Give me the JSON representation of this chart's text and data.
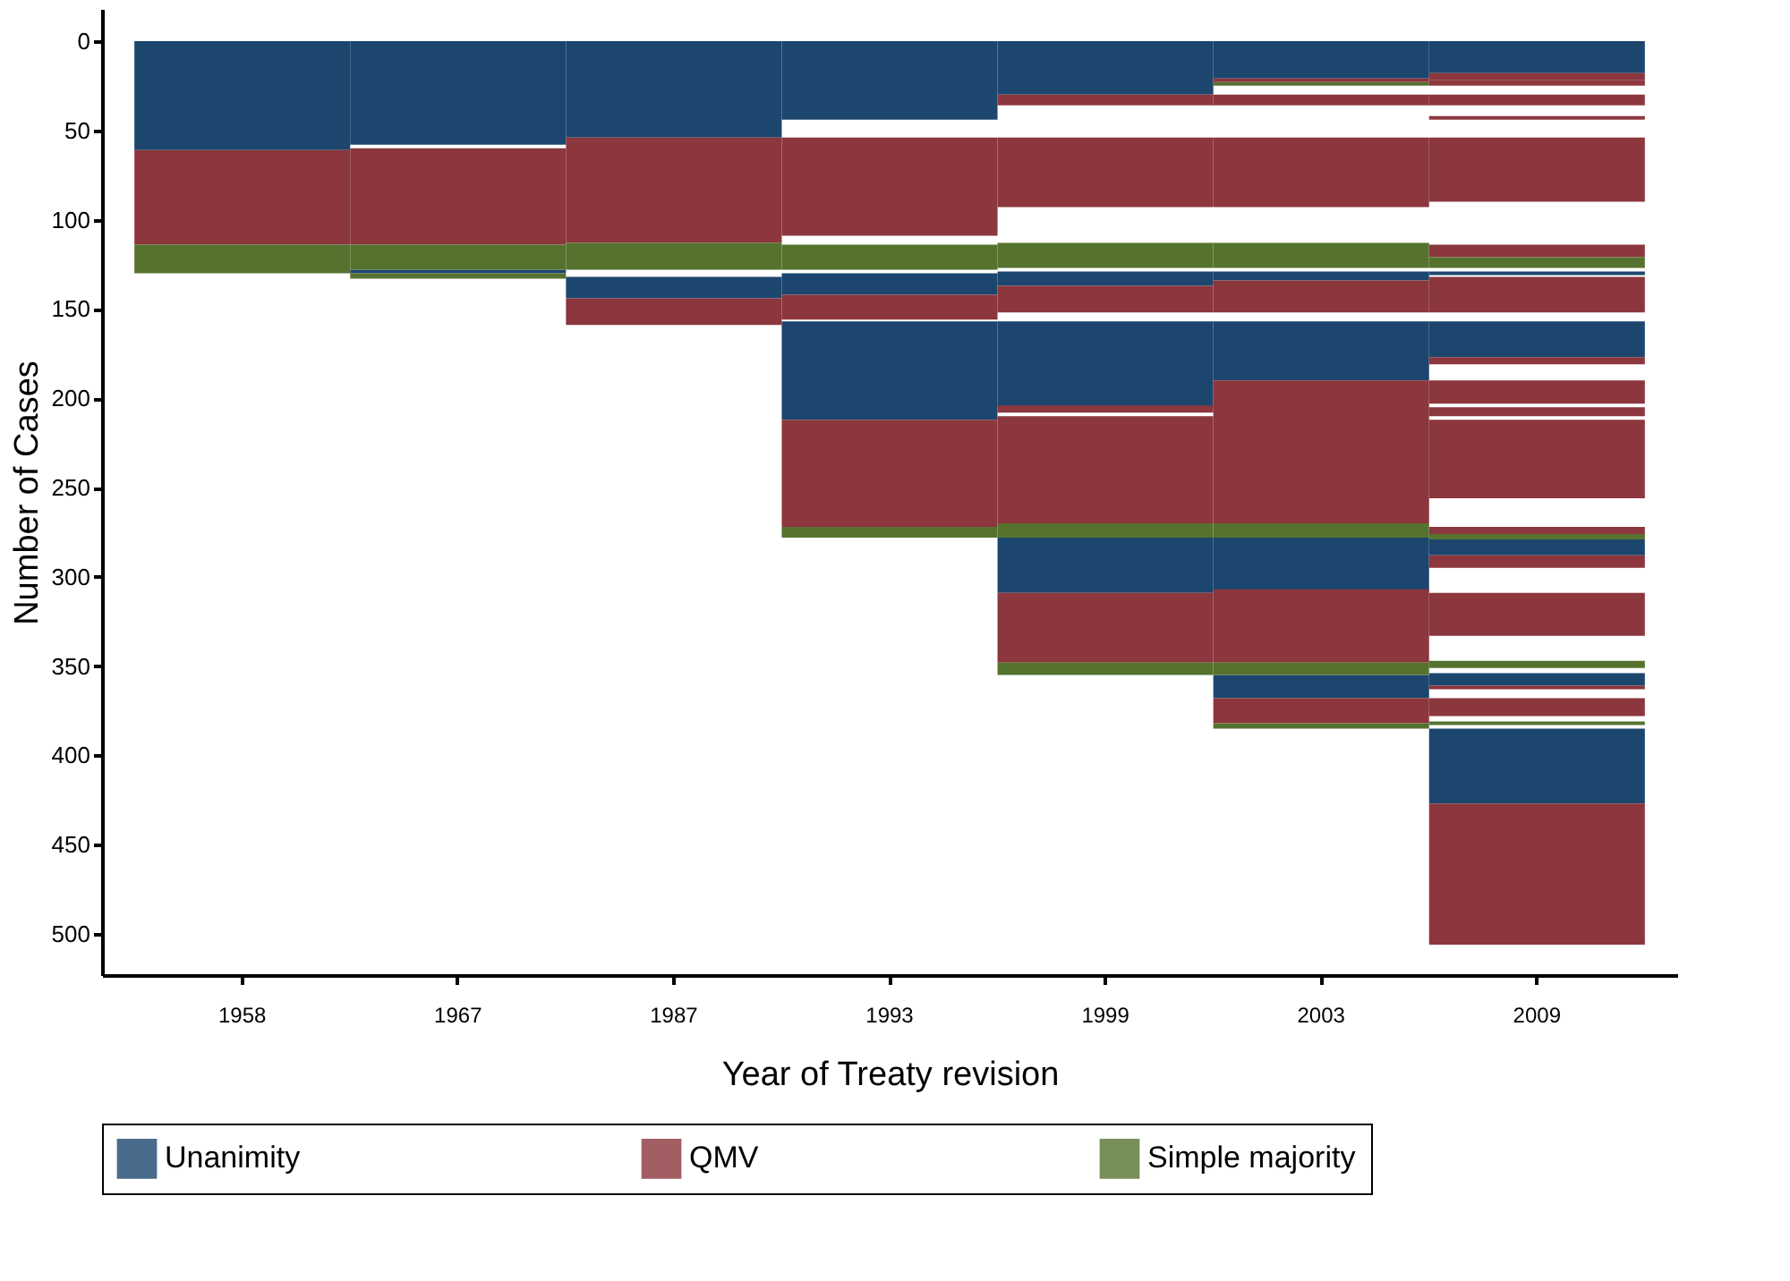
{
  "chart_data": {
    "type": "bar",
    "xlabel": "Year of Treaty revision",
    "ylabel": "Number of Cases",
    "categories": [
      "1958",
      "1967",
      "1987",
      "1993",
      "1999",
      "2003",
      "2009"
    ],
    "ylim": [
      523,
      -18
    ],
    "yticks": [
      0,
      50,
      100,
      150,
      200,
      250,
      300,
      350,
      400,
      450,
      500
    ],
    "grid": false,
    "legend": "bottom",
    "series": [
      {
        "name": "Unanimity",
        "color": "#1c466e",
        "base": [
          0,
          0,
          0,
          0,
          0,
          0,
          0
        ],
        "values": [
          61,
          58,
          54,
          44,
          30,
          21,
          18
        ]
      },
      {
        "color": "#1c466e",
        "base": [
          null,
          128,
          132,
          130,
          129,
          129,
          129
        ],
        "values": [
          null,
          2,
          12,
          12,
          8,
          5,
          2
        ]
      },
      {
        "color": "#1c466e",
        "base": [
          null,
          null,
          null,
          157,
          157,
          157,
          157
        ],
        "values": [
          null,
          null,
          null,
          55,
          48,
          33,
          20
        ]
      },
      {
        "color": "#1c466e",
        "base": [
          null,
          null,
          null,
          null,
          278,
          278,
          279
        ],
        "values": [
          null,
          null,
          null,
          null,
          31,
          30,
          9
        ]
      },
      {
        "color": "#1c466e",
        "base": [
          null,
          null,
          null,
          null,
          null,
          355,
          354
        ],
        "values": [
          null,
          null,
          null,
          null,
          null,
          13,
          7
        ]
      },
      {
        "color": "#1c466e",
        "base": [
          null,
          null,
          null,
          null,
          null,
          null,
          385
        ],
        "values": [
          null,
          null,
          null,
          null,
          null,
          null,
          42
        ]
      },
      {
        "name": "QMV",
        "color": "#8c363d",
        "base": [
          61,
          60,
          54,
          54,
          30,
          21,
          18
        ],
        "values": [
          53,
          54,
          59,
          55,
          6,
          2,
          4
        ]
      },
      {
        "color": "#8c363d",
        "base": [
          null,
          null,
          144,
          142,
          54,
          30,
          22
        ],
        "values": [
          null,
          null,
          15,
          14,
          39,
          6,
          3
        ]
      },
      {
        "color": "#8c363d",
        "base": [
          null,
          null,
          null,
          212,
          137,
          54,
          30
        ],
        "values": [
          null,
          null,
          null,
          60,
          15,
          39,
          6
        ]
      },
      {
        "color": "#8c363d",
        "base": [
          null,
          null,
          null,
          null,
          204,
          134,
          42
        ],
        "values": [
          null,
          null,
          null,
          null,
          4,
          18,
          2
        ]
      },
      {
        "color": "#8c363d",
        "base": [
          null,
          null,
          null,
          null,
          210,
          190,
          54
        ],
        "values": [
          null,
          null,
          null,
          null,
          60,
          80,
          36
        ]
      },
      {
        "color": "#8c363d",
        "base": [
          null,
          null,
          null,
          null,
          309,
          307,
          114
        ],
        "values": [
          null,
          null,
          null,
          null,
          39,
          41,
          7
        ]
      },
      {
        "color": "#8c363d",
        "base": [
          null,
          null,
          null,
          null,
          null,
          368,
          132
        ],
        "values": [
          null,
          null,
          null,
          null,
          null,
          14,
          20
        ]
      },
      {
        "color": "#8c363d",
        "base": [
          null,
          null,
          null,
          null,
          null,
          null,
          177
        ],
        "values": [
          null,
          null,
          null,
          null,
          null,
          null,
          4
        ]
      },
      {
        "color": "#8c363d",
        "base": [
          null,
          null,
          null,
          null,
          null,
          null,
          190
        ],
        "values": [
          null,
          null,
          null,
          null,
          null,
          null,
          13
        ]
      },
      {
        "color": "#8c363d",
        "base": [
          null,
          null,
          null,
          null,
          null,
          null,
          205
        ],
        "values": [
          null,
          null,
          null,
          null,
          null,
          null,
          5
        ]
      },
      {
        "color": "#8c363d",
        "base": [
          null,
          null,
          null,
          null,
          null,
          null,
          212
        ],
        "values": [
          null,
          null,
          null,
          null,
          null,
          null,
          44
        ]
      },
      {
        "color": "#8c363d",
        "base": [
          null,
          null,
          null,
          null,
          null,
          null,
          272
        ],
        "values": [
          null,
          null,
          null,
          null,
          null,
          null,
          4
        ]
      },
      {
        "color": "#8c363d",
        "base": [
          null,
          null,
          null,
          null,
          null,
          null,
          288
        ],
        "values": [
          null,
          null,
          null,
          null,
          null,
          null,
          7
        ]
      },
      {
        "color": "#8c363d",
        "base": [
          null,
          null,
          null,
          null,
          null,
          null,
          309
        ],
        "values": [
          null,
          null,
          null,
          null,
          null,
          null,
          24
        ]
      },
      {
        "color": "#8c363d",
        "base": [
          null,
          null,
          null,
          null,
          null,
          null,
          361
        ],
        "values": [
          null,
          null,
          null,
          null,
          null,
          null,
          2
        ]
      },
      {
        "color": "#8c363d",
        "base": [
          null,
          null,
          null,
          null,
          null,
          null,
          368
        ],
        "values": [
          null,
          null,
          null,
          null,
          null,
          null,
          10
        ]
      },
      {
        "color": "#8c363d",
        "base": [
          null,
          null,
          null,
          null,
          null,
          null,
          427
        ],
        "values": [
          null,
          null,
          null,
          null,
          null,
          null,
          79
        ]
      },
      {
        "name": "Simple majority",
        "color": "#55732f",
        "base": [
          114,
          114,
          113,
          114,
          113,
          23,
          121
        ],
        "values": [
          16,
          14,
          15,
          14,
          14,
          2,
          6
        ]
      },
      {
        "color": "#55732f",
        "base": [
          null,
          130,
          null,
          272,
          270,
          113,
          276
        ],
        "values": [
          null,
          3,
          null,
          6,
          8,
          14,
          3
        ]
      },
      {
        "color": "#55732f",
        "base": [
          null,
          null,
          null,
          null,
          348,
          270,
          347
        ],
        "values": [
          null,
          null,
          null,
          null,
          7,
          8,
          4
        ]
      },
      {
        "color": "#55732f",
        "base": [
          null,
          null,
          null,
          null,
          null,
          348,
          381
        ],
        "values": [
          null,
          null,
          null,
          null,
          null,
          7,
          2
        ]
      },
      {
        "color": "#55732f",
        "base": [
          null,
          null,
          null,
          null,
          null,
          382,
          null
        ],
        "values": [
          null,
          null,
          null,
          null,
          null,
          3,
          null
        ]
      }
    ]
  }
}
